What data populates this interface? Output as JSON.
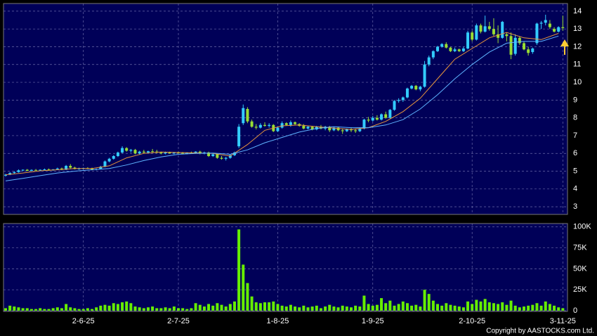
{
  "chart_data": [
    {
      "type": "candlestick",
      "up_color": "#33ccff",
      "down_color": "#99dd33",
      "ylim": [
        2.57,
        14.43
      ],
      "yticks": [
        3,
        4,
        5,
        6,
        7,
        8,
        9,
        10,
        11,
        12,
        13,
        14
      ],
      "grid": true,
      "ohlc": [
        [
          4.75,
          4.85,
          4.7,
          4.8
        ],
        [
          4.8,
          4.95,
          4.78,
          4.9
        ],
        [
          4.9,
          5.0,
          4.85,
          4.95
        ],
        [
          4.95,
          5.1,
          4.92,
          5.05
        ],
        [
          5.05,
          5.1,
          5.0,
          5.08
        ],
        [
          5.08,
          5.12,
          5.0,
          5.02
        ],
        [
          5.02,
          5.1,
          5.0,
          5.07
        ],
        [
          5.07,
          5.12,
          5.03,
          5.05
        ],
        [
          5.05,
          5.1,
          5.0,
          5.08
        ],
        [
          5.08,
          5.15,
          5.05,
          5.1
        ],
        [
          5.1,
          5.15,
          5.02,
          5.05
        ],
        [
          5.05,
          5.12,
          5.03,
          5.1
        ],
        [
          5.1,
          5.2,
          5.08,
          5.15
        ],
        [
          5.15,
          5.2,
          5.05,
          5.08
        ],
        [
          5.08,
          5.35,
          5.06,
          5.3
        ],
        [
          5.3,
          5.4,
          5.15,
          5.2
        ],
        [
          5.2,
          5.25,
          5.1,
          5.12
        ],
        [
          5.12,
          5.2,
          5.08,
          5.15
        ],
        [
          5.15,
          5.2,
          5.1,
          5.18
        ],
        [
          5.18,
          5.22,
          5.12,
          5.15
        ],
        [
          5.15,
          5.2,
          5.05,
          5.1
        ],
        [
          5.1,
          5.15,
          5.05,
          5.12
        ],
        [
          5.12,
          5.3,
          5.1,
          5.25
        ],
        [
          5.25,
          5.6,
          5.22,
          5.55
        ],
        [
          5.55,
          5.75,
          5.5,
          5.7
        ],
        [
          5.7,
          5.9,
          5.65,
          5.85
        ],
        [
          5.85,
          6.1,
          5.8,
          6.05
        ],
        [
          6.05,
          6.4,
          6.0,
          6.3
        ],
        [
          6.3,
          6.35,
          6.1,
          6.15
        ],
        [
          6.15,
          6.25,
          6.05,
          6.2
        ],
        [
          6.2,
          6.25,
          5.95,
          6.0
        ],
        [
          6.0,
          6.15,
          5.95,
          6.1
        ],
        [
          6.1,
          6.2,
          6.0,
          6.05
        ],
        [
          6.05,
          6.15,
          6.0,
          6.12
        ],
        [
          6.12,
          6.25,
          6.05,
          6.1
        ],
        [
          6.1,
          6.2,
          6.0,
          6.05
        ],
        [
          6.05,
          6.1,
          5.95,
          6.0
        ],
        [
          6.0,
          6.1,
          5.95,
          6.05
        ],
        [
          6.05,
          6.1,
          5.98,
          6.0
        ],
        [
          6.0,
          6.08,
          5.95,
          6.05
        ],
        [
          6.05,
          6.1,
          5.98,
          6.02
        ],
        [
          6.02,
          6.08,
          5.95,
          6.0
        ],
        [
          6.0,
          6.06,
          5.95,
          6.03
        ],
        [
          6.03,
          6.1,
          5.98,
          6.0
        ],
        [
          6.0,
          6.12,
          5.98,
          6.1
        ],
        [
          6.1,
          6.15,
          5.95,
          6.0
        ],
        [
          6.0,
          6.1,
          5.95,
          6.05
        ],
        [
          6.05,
          6.1,
          5.8,
          5.85
        ],
        [
          5.85,
          6.0,
          5.8,
          5.95
        ],
        [
          5.95,
          6.0,
          5.7,
          5.75
        ],
        [
          5.75,
          5.85,
          5.65,
          5.7
        ],
        [
          5.7,
          5.8,
          5.6,
          5.75
        ],
        [
          5.75,
          5.95,
          5.7,
          5.9
        ],
        [
          5.9,
          6.1,
          5.85,
          6.05
        ],
        [
          6.4,
          7.65,
          6.3,
          7.5
        ],
        [
          7.7,
          8.75,
          7.6,
          8.55
        ],
        [
          8.5,
          8.6,
          7.7,
          7.8
        ],
        [
          7.8,
          7.9,
          7.45,
          7.5
        ],
        [
          7.5,
          7.65,
          7.35,
          7.45
        ],
        [
          7.45,
          7.7,
          7.4,
          7.6
        ],
        [
          7.6,
          7.75,
          7.5,
          7.55
        ],
        [
          7.55,
          7.7,
          7.45,
          7.6
        ],
        [
          7.6,
          7.65,
          7.2,
          7.25
        ],
        [
          7.25,
          7.5,
          7.2,
          7.45
        ],
        [
          7.45,
          7.8,
          7.4,
          7.7
        ],
        [
          7.7,
          7.75,
          7.55,
          7.6
        ],
        [
          7.6,
          7.85,
          7.5,
          7.75
        ],
        [
          7.75,
          7.8,
          7.6,
          7.65
        ],
        [
          7.65,
          7.7,
          7.5,
          7.55
        ],
        [
          7.55,
          7.65,
          7.35,
          7.4
        ],
        [
          7.4,
          7.55,
          7.35,
          7.5
        ],
        [
          7.5,
          7.55,
          7.3,
          7.35
        ],
        [
          7.35,
          7.55,
          7.3,
          7.5
        ],
        [
          7.5,
          7.6,
          7.35,
          7.4
        ],
        [
          7.4,
          7.55,
          7.3,
          7.5
        ],
        [
          7.5,
          7.55,
          7.2,
          7.3
        ],
        [
          7.3,
          7.5,
          7.25,
          7.45
        ],
        [
          7.45,
          7.5,
          7.25,
          7.3
        ],
        [
          7.3,
          7.4,
          7.1,
          7.25
        ],
        [
          7.25,
          7.4,
          7.2,
          7.35
        ],
        [
          7.35,
          7.45,
          7.2,
          7.3
        ],
        [
          7.3,
          7.4,
          7.15,
          7.25
        ],
        [
          7.25,
          7.45,
          7.2,
          7.4
        ],
        [
          7.4,
          7.95,
          7.35,
          7.9
        ],
        [
          7.9,
          8.05,
          7.75,
          7.85
        ],
        [
          7.85,
          8.1,
          7.8,
          8.0
        ],
        [
          8.0,
          8.15,
          7.85,
          7.9
        ],
        [
          7.9,
          8.25,
          7.85,
          8.2
        ],
        [
          8.2,
          8.35,
          7.95,
          8.0
        ],
        [
          8.0,
          8.5,
          7.95,
          8.45
        ],
        [
          8.45,
          9.0,
          8.4,
          8.95
        ],
        [
          8.95,
          9.1,
          8.85,
          9.0
        ],
        [
          9.0,
          9.2,
          8.9,
          9.15
        ],
        [
          9.15,
          9.7,
          9.1,
          9.65
        ],
        [
          9.65,
          9.85,
          9.6,
          9.8
        ],
        [
          9.8,
          9.85,
          9.55,
          9.6
        ],
        [
          9.6,
          9.8,
          9.5,
          9.75
        ],
        [
          9.75,
          11.2,
          9.7,
          11.0
        ],
        [
          11.0,
          11.5,
          10.9,
          11.4
        ],
        [
          11.4,
          11.8,
          11.3,
          11.75
        ],
        [
          11.75,
          12.05,
          11.7,
          12.0
        ],
        [
          12.0,
          12.2,
          11.95,
          12.15
        ],
        [
          12.15,
          12.25,
          11.9,
          11.95
        ],
        [
          11.95,
          12.0,
          11.7,
          11.75
        ],
        [
          11.75,
          11.95,
          11.7,
          11.85
        ],
        [
          11.85,
          11.9,
          11.7,
          11.75
        ],
        [
          11.75,
          12.0,
          11.7,
          11.9
        ],
        [
          11.9,
          12.9,
          11.85,
          12.8
        ],
        [
          12.8,
          12.9,
          12.3,
          12.4
        ],
        [
          12.4,
          13.3,
          12.35,
          13.2
        ],
        [
          13.2,
          13.3,
          12.75,
          12.85
        ],
        [
          12.85,
          13.75,
          12.8,
          13.15
        ],
        [
          13.15,
          13.4,
          12.9,
          13.0
        ],
        [
          13.0,
          13.6,
          12.6,
          12.7
        ],
        [
          12.7,
          13.2,
          12.2,
          12.5
        ],
        [
          12.5,
          13.45,
          12.45,
          13.4
        ],
        [
          12.7,
          12.8,
          12.3,
          12.6
        ],
        [
          12.6,
          12.8,
          11.3,
          11.55
        ],
        [
          11.6,
          12.7,
          11.5,
          12.5
        ],
        [
          12.5,
          12.6,
          12.1,
          12.2
        ],
        [
          12.2,
          12.3,
          11.8,
          11.85
        ],
        [
          11.85,
          12.0,
          11.5,
          11.65
        ],
        [
          11.7,
          11.95,
          11.6,
          11.9
        ],
        [
          12.2,
          13.35,
          12.1,
          13.3
        ],
        [
          13.3,
          13.45,
          13.0,
          13.35
        ],
        [
          13.35,
          13.8,
          13.2,
          13.5
        ],
        [
          13.3,
          13.5,
          13.0,
          13.1
        ],
        [
          13.0,
          13.1,
          12.8,
          12.85
        ],
        [
          12.85,
          13.15,
          12.8,
          13.1
        ],
        [
          13.1,
          13.75,
          12.9,
          13.05
        ]
      ],
      "ma_lines": [
        {
          "color": "#e8963c",
          "x": [
            0,
            4,
            8,
            12,
            16,
            20,
            24,
            28,
            32,
            36,
            40,
            44,
            48,
            52,
            56,
            60,
            64,
            68,
            72,
            76,
            80,
            84,
            88,
            92,
            96,
            100,
            104,
            108,
            112,
            116,
            120,
            124,
            128
          ],
          "values": [
            4.8,
            4.9,
            5.02,
            5.08,
            5.15,
            5.15,
            5.3,
            5.75,
            6.0,
            6.08,
            6.05,
            6.03,
            6.0,
            5.85,
            6.5,
            7.3,
            7.55,
            7.6,
            7.5,
            7.42,
            7.35,
            7.45,
            7.8,
            8.35,
            9.1,
            10.2,
            11.3,
            11.9,
            12.5,
            12.8,
            12.5,
            12.4,
            12.75
          ]
        },
        {
          "color": "#5fb4ff",
          "x": [
            0,
            4,
            8,
            12,
            16,
            20,
            24,
            28,
            32,
            36,
            40,
            44,
            48,
            52,
            56,
            60,
            64,
            68,
            72,
            76,
            80,
            84,
            88,
            92,
            96,
            100,
            104,
            108,
            112,
            116,
            120,
            124,
            128
          ],
          "values": [
            4.45,
            4.6,
            4.75,
            4.9,
            5.0,
            5.08,
            5.15,
            5.35,
            5.6,
            5.8,
            5.95,
            6.0,
            6.02,
            5.95,
            6.2,
            6.6,
            6.9,
            7.2,
            7.4,
            7.5,
            7.45,
            7.45,
            7.6,
            7.9,
            8.5,
            9.3,
            10.2,
            11.0,
            11.7,
            12.2,
            12.3,
            12.3,
            12.6
          ]
        }
      ]
    },
    {
      "type": "bar",
      "color": "#66ee00",
      "ylim": [
        0,
        104000
      ],
      "yticks": [
        0,
        {
          "value": 25000,
          "label": "25K"
        },
        {
          "value": 50000,
          "label": "50K"
        },
        {
          "value": 75000,
          "label": "75K"
        },
        {
          "value": 100000,
          "label": "100K"
        }
      ],
      "grid": true,
      "values": [
        3000,
        6000,
        5000,
        4000,
        3000,
        3000,
        2000,
        2000,
        3000,
        2000,
        2000,
        3000,
        4000,
        3000,
        8000,
        4000,
        3000,
        2000,
        2000,
        3000,
        2000,
        4000,
        6000,
        7000,
        6000,
        9000,
        8000,
        10000,
        11000,
        9000,
        5000,
        4000,
        3000,
        4000,
        5000,
        3000,
        3000,
        4000,
        3000,
        5000,
        3000,
        3000,
        2000,
        3000,
        9000,
        7000,
        5000,
        8000,
        6000,
        9000,
        7000,
        5000,
        8000,
        11000,
        97000,
        55000,
        33000,
        17000,
        10000,
        9000,
        10000,
        10000,
        11000,
        8000,
        6000,
        5000,
        7000,
        5000,
        4000,
        6000,
        4000,
        5000,
        6000,
        3000,
        5000,
        7000,
        5000,
        4000,
        6000,
        5000,
        4000,
        6000,
        5000,
        18000,
        8000,
        6000,
        7000,
        15000,
        9000,
        12000,
        6000,
        8000,
        11000,
        9000,
        6000,
        7000,
        5000,
        25000,
        20000,
        12000,
        8000,
        6000,
        9000,
        7000,
        6000,
        5000,
        4000,
        11000,
        8000,
        13000,
        11000,
        14000,
        10000,
        9000,
        8000,
        10000,
        7000,
        12000,
        6000,
        4000,
        5000,
        6000,
        7000,
        9000,
        6000,
        11000,
        8000,
        6000,
        4000,
        3000
      ],
      "categories": [
        null,
        null,
        null,
        null,
        null,
        null,
        null,
        null,
        null,
        null,
        null,
        null,
        null,
        null,
        null,
        null,
        null,
        null,
        "2-6-25",
        null,
        null,
        null,
        null,
        null,
        null,
        null,
        null,
        null,
        null,
        null,
        null,
        null,
        null,
        null,
        null,
        null,
        null,
        null,
        null,
        null,
        "2-7-25",
        null,
        null,
        null,
        null,
        null,
        null,
        null,
        null,
        null,
        null,
        null,
        null,
        null,
        null,
        null,
        null,
        null,
        null,
        null,
        null,
        null,
        null,
        "1-8-25",
        null,
        null,
        null,
        null,
        null,
        null,
        null,
        null,
        null,
        null,
        null,
        null,
        null,
        null,
        null,
        null,
        null,
        null,
        null,
        null,
        null,
        "1-9-25",
        null,
        null,
        null,
        null,
        null,
        null,
        null,
        null,
        null,
        null,
        null,
        null,
        null,
        null,
        null,
        null,
        null,
        null,
        null,
        null,
        null,
        null,
        "2-10-25",
        null,
        null,
        null,
        null,
        null,
        null,
        null,
        null,
        null,
        null,
        null,
        null,
        null,
        null,
        null,
        null,
        null,
        null,
        null,
        null,
        "3-11-25"
      ]
    }
  ],
  "footer": "Copyright by AASTOCKS.com Ltd."
}
